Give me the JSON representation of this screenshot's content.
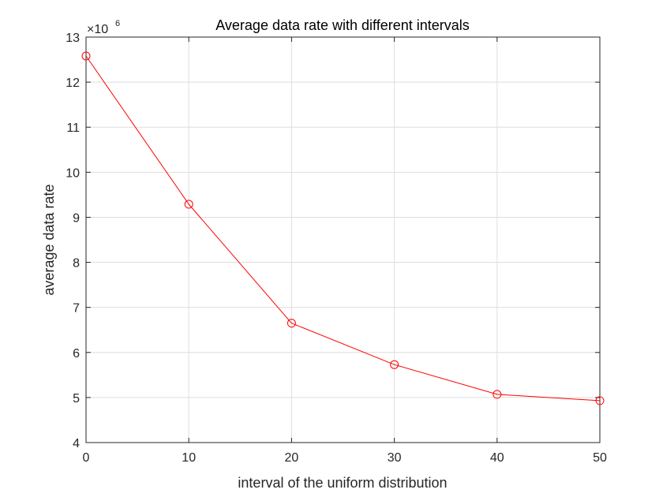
{
  "chart_data": {
    "type": "line",
    "title": "Average data rate with different intervals",
    "xlabel": "interval of the uniform distribution",
    "ylabel": "average data rate",
    "y_exponent_multiplier": "×10",
    "y_exponent_power": "6",
    "xlim": [
      0,
      50
    ],
    "ylim": [
      4,
      13
    ],
    "xticks": [
      0,
      10,
      20,
      30,
      40,
      50
    ],
    "yticks": [
      4,
      5,
      6,
      7,
      8,
      9,
      10,
      11,
      12,
      13
    ],
    "grid": true,
    "series": [
      {
        "x": [
          0,
          10,
          20,
          30,
          40,
          50
        ],
        "y": [
          12.58,
          9.29,
          6.65,
          5.73,
          5.07,
          4.93
        ],
        "color": "#ff0000",
        "marker": "circle-open"
      }
    ]
  }
}
